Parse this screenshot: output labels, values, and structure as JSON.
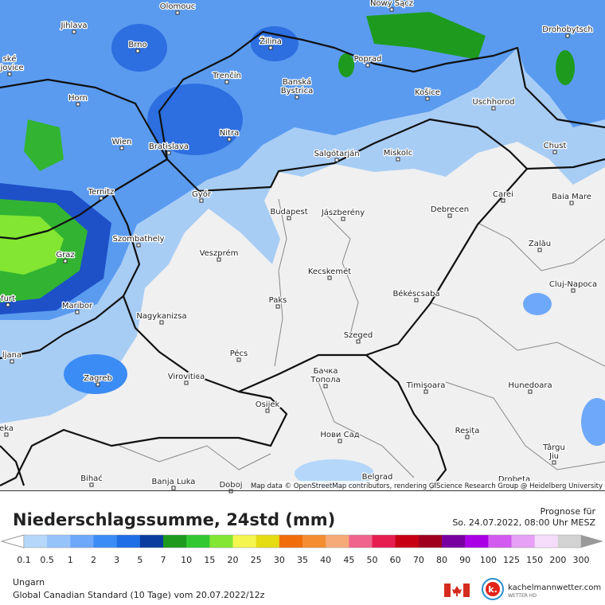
{
  "map": {
    "cities": [
      {
        "lines": [
          "Olomouc"
        ]
      },
      {
        "lines": [
          "Nowy Sącz"
        ]
      },
      {
        "lines": [
          "Jihlava"
        ]
      },
      {
        "lines": [
          "Brno"
        ]
      },
      {
        "lines": [
          "Žilina"
        ]
      },
      {
        "lines": [
          "Poprad"
        ]
      },
      {
        "lines": [
          "Drohobytsch"
        ]
      },
      {
        "lines": [
          "ské",
          "ějovice"
        ]
      },
      {
        "lines": [
          "Trenčín"
        ]
      },
      {
        "lines": [
          "Banská",
          "Bystrica"
        ]
      },
      {
        "lines": [
          "Horn"
        ]
      },
      {
        "lines": [
          "Košice"
        ]
      },
      {
        "lines": [
          "Uschhorod"
        ]
      },
      {
        "lines": [
          "Nitra"
        ]
      },
      {
        "lines": [
          "Wien"
        ]
      },
      {
        "lines": [
          "Bratislava"
        ]
      },
      {
        "lines": [
          "Salgótarján"
        ]
      },
      {
        "lines": [
          "Miskolc"
        ]
      },
      {
        "lines": [
          "Chust"
        ]
      },
      {
        "lines": [
          "Ternitz"
        ]
      },
      {
        "lines": [
          "Győr"
        ]
      },
      {
        "lines": [
          "Budapest"
        ]
      },
      {
        "lines": [
          "Jászberény"
        ]
      },
      {
        "lines": [
          "Debrecen"
        ]
      },
      {
        "lines": [
          "Carei"
        ]
      },
      {
        "lines": [
          "Baia Mare"
        ]
      },
      {
        "lines": [
          "Szombathely"
        ]
      },
      {
        "lines": [
          "Veszprém"
        ]
      },
      {
        "lines": [
          "Zalău"
        ]
      },
      {
        "lines": [
          "Graz"
        ]
      },
      {
        "lines": [
          "Kecskemét"
        ]
      },
      {
        "lines": [
          "Cluj-Napoca"
        ]
      },
      {
        "lines": [
          "furt"
        ]
      },
      {
        "lines": [
          "Maribor"
        ]
      },
      {
        "lines": [
          "Paks"
        ]
      },
      {
        "lines": [
          "Békéscsaba"
        ]
      },
      {
        "lines": [
          "Nagykanizsa"
        ]
      },
      {
        "lines": [
          "ljana"
        ]
      },
      {
        "lines": [
          "Pécs"
        ]
      },
      {
        "lines": [
          "Szeged"
        ]
      },
      {
        "lines": [
          "Zagreb"
        ]
      },
      {
        "lines": [
          "Virovitica"
        ]
      },
      {
        "lines": [
          "Бачка",
          "Топола"
        ]
      },
      {
        "lines": [
          "Timișoara"
        ]
      },
      {
        "lines": [
          "Hunedoara"
        ]
      },
      {
        "lines": [
          "eka"
        ]
      },
      {
        "lines": [
          "Osijek"
        ]
      },
      {
        "lines": [
          "Нови Сад"
        ]
      },
      {
        "lines": [
          "Reșița"
        ]
      },
      {
        "lines": [
          "Târgu",
          "Jiu"
        ]
      },
      {
        "lines": [
          "Bihać"
        ]
      },
      {
        "lines": [
          "Banja Luka"
        ]
      },
      {
        "lines": [
          "Doboj"
        ]
      },
      {
        "lines": [
          "Belgrad"
        ]
      },
      {
        "lines": [
          "Drobeta"
        ]
      }
    ],
    "attribution": "Map data © OpenStreetMap contributors, rendering GIScience Research Group @ Heidelberg University"
  },
  "footer": {
    "title": "Niederschlagssumme, 24std (mm)",
    "forecast_label": "Prognose für",
    "forecast_time": "So. 24.07.2022, 08:00 Uhr MESZ",
    "region": "Ungarn",
    "model": "Global Canadian Standard (10 Tage) vom  20.07.2022/12z",
    "brand": "kachelmannwetter.com",
    "brand_sub": "WETTER HD"
  },
  "legend": {
    "labels": [
      "0.1",
      "0.5",
      "1",
      "2",
      "3",
      "5",
      "7",
      "10",
      "15",
      "20",
      "25",
      "30",
      "35",
      "40",
      "45",
      "50",
      "60",
      "70",
      "80",
      "90",
      "100",
      "125",
      "150",
      "200",
      "300"
    ],
    "colors": [
      "#b4d7fa",
      "#96c3fa",
      "#6ea8fa",
      "#3c8cf5",
      "#1e6ee6",
      "#0a3ca0",
      "#1e9b1e",
      "#32c832",
      "#82e632",
      "#f5f550",
      "#e6dc14",
      "#f06e0a",
      "#f58c32",
      "#f5aa78",
      "#f0648c",
      "#e61e50",
      "#c80014",
      "#a0001e",
      "#7800a0",
      "#aa00e6",
      "#d25af0",
      "#e6a0f5",
      "#f5dcfa",
      "#d2d2d2"
    ]
  }
}
